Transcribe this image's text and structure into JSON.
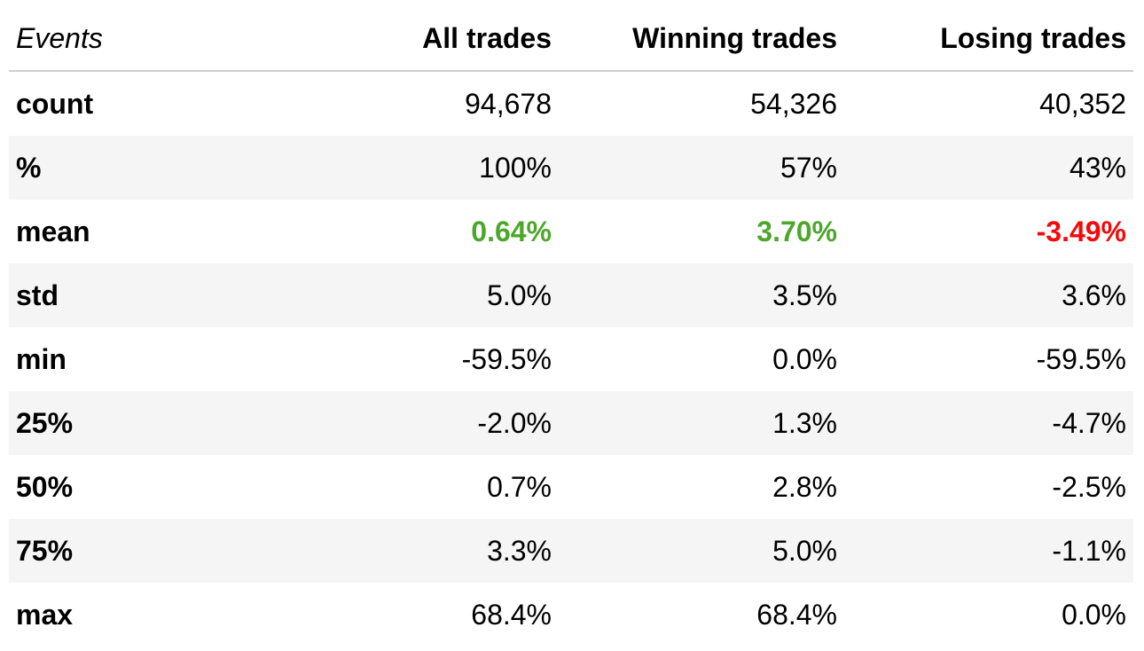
{
  "chart_data": {
    "type": "table",
    "columns": [
      "Events",
      "All trades",
      "Winning trades",
      "Losing trades"
    ],
    "rows": [
      {
        "label": "count",
        "values": [
          "94,678",
          "54,326",
          "40,352"
        ]
      },
      {
        "label": "%",
        "values": [
          "100%",
          "57%",
          "43%"
        ]
      },
      {
        "label": "mean",
        "values": [
          "0.64%",
          "3.70%",
          "-3.49%"
        ]
      },
      {
        "label": "std",
        "values": [
          "5.0%",
          "3.5%",
          "3.6%"
        ]
      },
      {
        "label": "min",
        "values": [
          "-59.5%",
          "0.0%",
          "-59.5%"
        ]
      },
      {
        "label": "25%",
        "values": [
          "-2.0%",
          "1.3%",
          "-4.7%"
        ]
      },
      {
        "label": "50%",
        "values": [
          "0.7%",
          "2.8%",
          "-2.5%"
        ]
      },
      {
        "label": "75%",
        "values": [
          "3.3%",
          "5.0%",
          "-1.1%"
        ]
      },
      {
        "label": "max",
        "values": [
          "68.4%",
          "68.4%",
          "0.0%"
        ]
      }
    ],
    "highlight_colors": {
      "positive": "#4ca72a",
      "negative": "#f20a0a"
    }
  }
}
